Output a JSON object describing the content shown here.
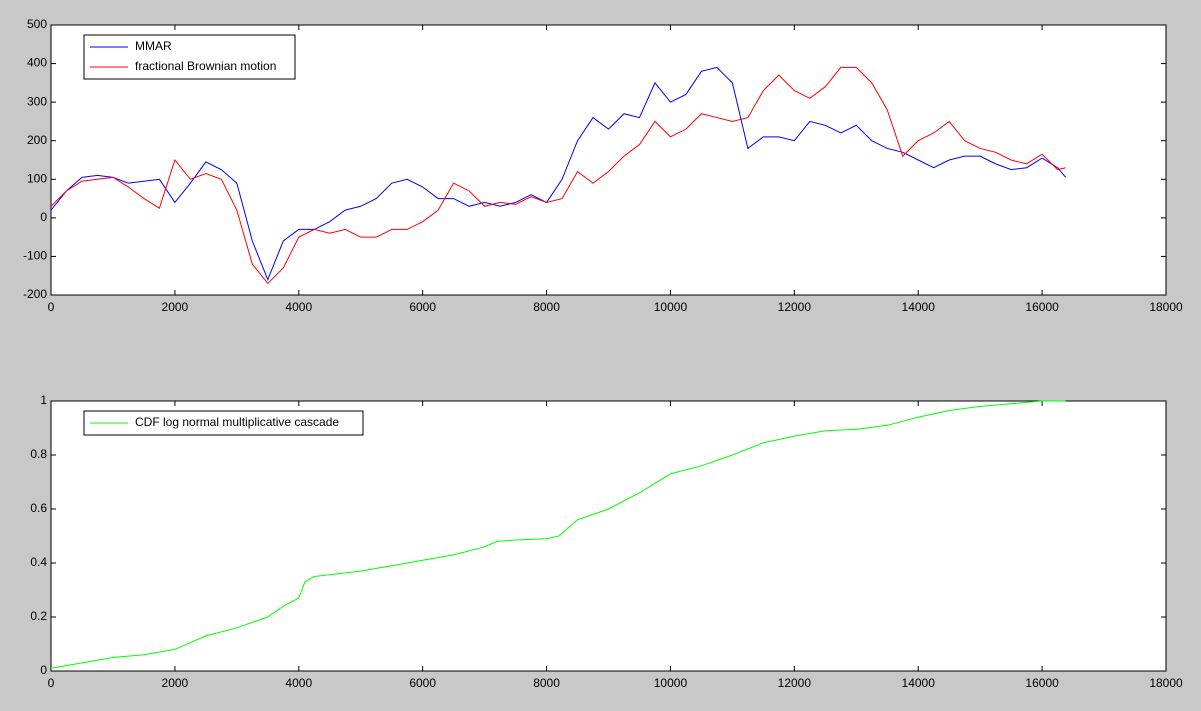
{
  "chart_data": [
    {
      "type": "line",
      "legend": "northwest",
      "x": [
        0,
        250,
        500,
        750,
        1000,
        1250,
        1500,
        1750,
        2000,
        2250,
        2500,
        2750,
        3000,
        3250,
        3500,
        3750,
        4000,
        4250,
        4500,
        4750,
        5000,
        5250,
        5500,
        5750,
        6000,
        6250,
        6500,
        6750,
        7000,
        7250,
        7500,
        7750,
        8000,
        8250,
        8500,
        8750,
        9000,
        9250,
        9500,
        9750,
        10000,
        10250,
        10500,
        10750,
        11000,
        11250,
        11500,
        11750,
        12000,
        12250,
        12500,
        12750,
        13000,
        13250,
        13500,
        13750,
        14000,
        14250,
        14500,
        14750,
        15000,
        15250,
        15500,
        15750,
        16000,
        16250,
        16380
      ],
      "series": [
        {
          "name": "MMAR",
          "color": "#0000ff",
          "values": [
            20,
            70,
            105,
            110,
            105,
            90,
            95,
            100,
            40,
            90,
            145,
            125,
            90,
            -60,
            -160,
            -60,
            -30,
            -30,
            -10,
            20,
            30,
            50,
            90,
            100,
            80,
            50,
            50,
            30,
            40,
            30,
            40,
            60,
            40,
            100,
            200,
            260,
            230,
            270,
            260,
            350,
            300,
            320,
            380,
            390,
            350,
            180,
            210,
            210,
            200,
            250,
            240,
            220,
            240,
            200,
            180,
            170,
            150,
            130,
            150,
            160,
            160,
            140,
            125,
            130,
            155,
            130,
            105
          ]
        },
        {
          "name": "fractional Brownian motion",
          "color": "#ff0000",
          "values": [
            30,
            70,
            95,
            100,
            105,
            80,
            50,
            25,
            150,
            100,
            115,
            100,
            20,
            -120,
            -170,
            -130,
            -50,
            -30,
            -40,
            -30,
            -50,
            -50,
            -30,
            -30,
            -10,
            20,
            90,
            70,
            30,
            40,
            35,
            55,
            40,
            50,
            120,
            90,
            120,
            160,
            190,
            250,
            210,
            230,
            270,
            260,
            250,
            260,
            330,
            370,
            330,
            310,
            340,
            390,
            390,
            350,
            280,
            160,
            200,
            220,
            250,
            200,
            180,
            170,
            150,
            140,
            165,
            125,
            130
          ]
        }
      ],
      "xlim": [
        0,
        18000
      ],
      "xticks": [
        0,
        2000,
        4000,
        6000,
        8000,
        10000,
        12000,
        14000,
        16000,
        18000
      ],
      "ylim": [
        -200,
        500
      ],
      "yticks": [
        -200,
        -100,
        0,
        100,
        200,
        300,
        400,
        500
      ]
    },
    {
      "type": "line",
      "legend": "northwest",
      "x": [
        0,
        1000,
        1500,
        2000,
        2500,
        3000,
        3500,
        3750,
        4000,
        4100,
        4250,
        5000,
        5500,
        6000,
        6500,
        7000,
        7200,
        7500,
        8000,
        8200,
        8500,
        9000,
        9500,
        10000,
        10500,
        11000,
        11500,
        12000,
        12500,
        13000,
        13500,
        14000,
        14500,
        15000,
        15500,
        16000,
        16380
      ],
      "series": [
        {
          "name": "CDF log normal multiplicative cascade",
          "color": "#00ff00",
          "values": [
            0.01,
            0.05,
            0.06,
            0.08,
            0.13,
            0.16,
            0.2,
            0.24,
            0.27,
            0.33,
            0.35,
            0.37,
            0.39,
            0.41,
            0.43,
            0.46,
            0.48,
            0.485,
            0.49,
            0.5,
            0.56,
            0.6,
            0.66,
            0.73,
            0.76,
            0.8,
            0.845,
            0.87,
            0.89,
            0.895,
            0.91,
            0.94,
            0.965,
            0.98,
            0.99,
            1,
            1
          ]
        }
      ],
      "xlim": [
        0,
        18000
      ],
      "xticks": [
        0,
        2000,
        4000,
        6000,
        8000,
        10000,
        12000,
        14000,
        16000,
        18000
      ],
      "ylim": [
        0,
        1
      ],
      "yticks": [
        0,
        0.2,
        0.4,
        0.6,
        0.8,
        1
      ]
    }
  ]
}
